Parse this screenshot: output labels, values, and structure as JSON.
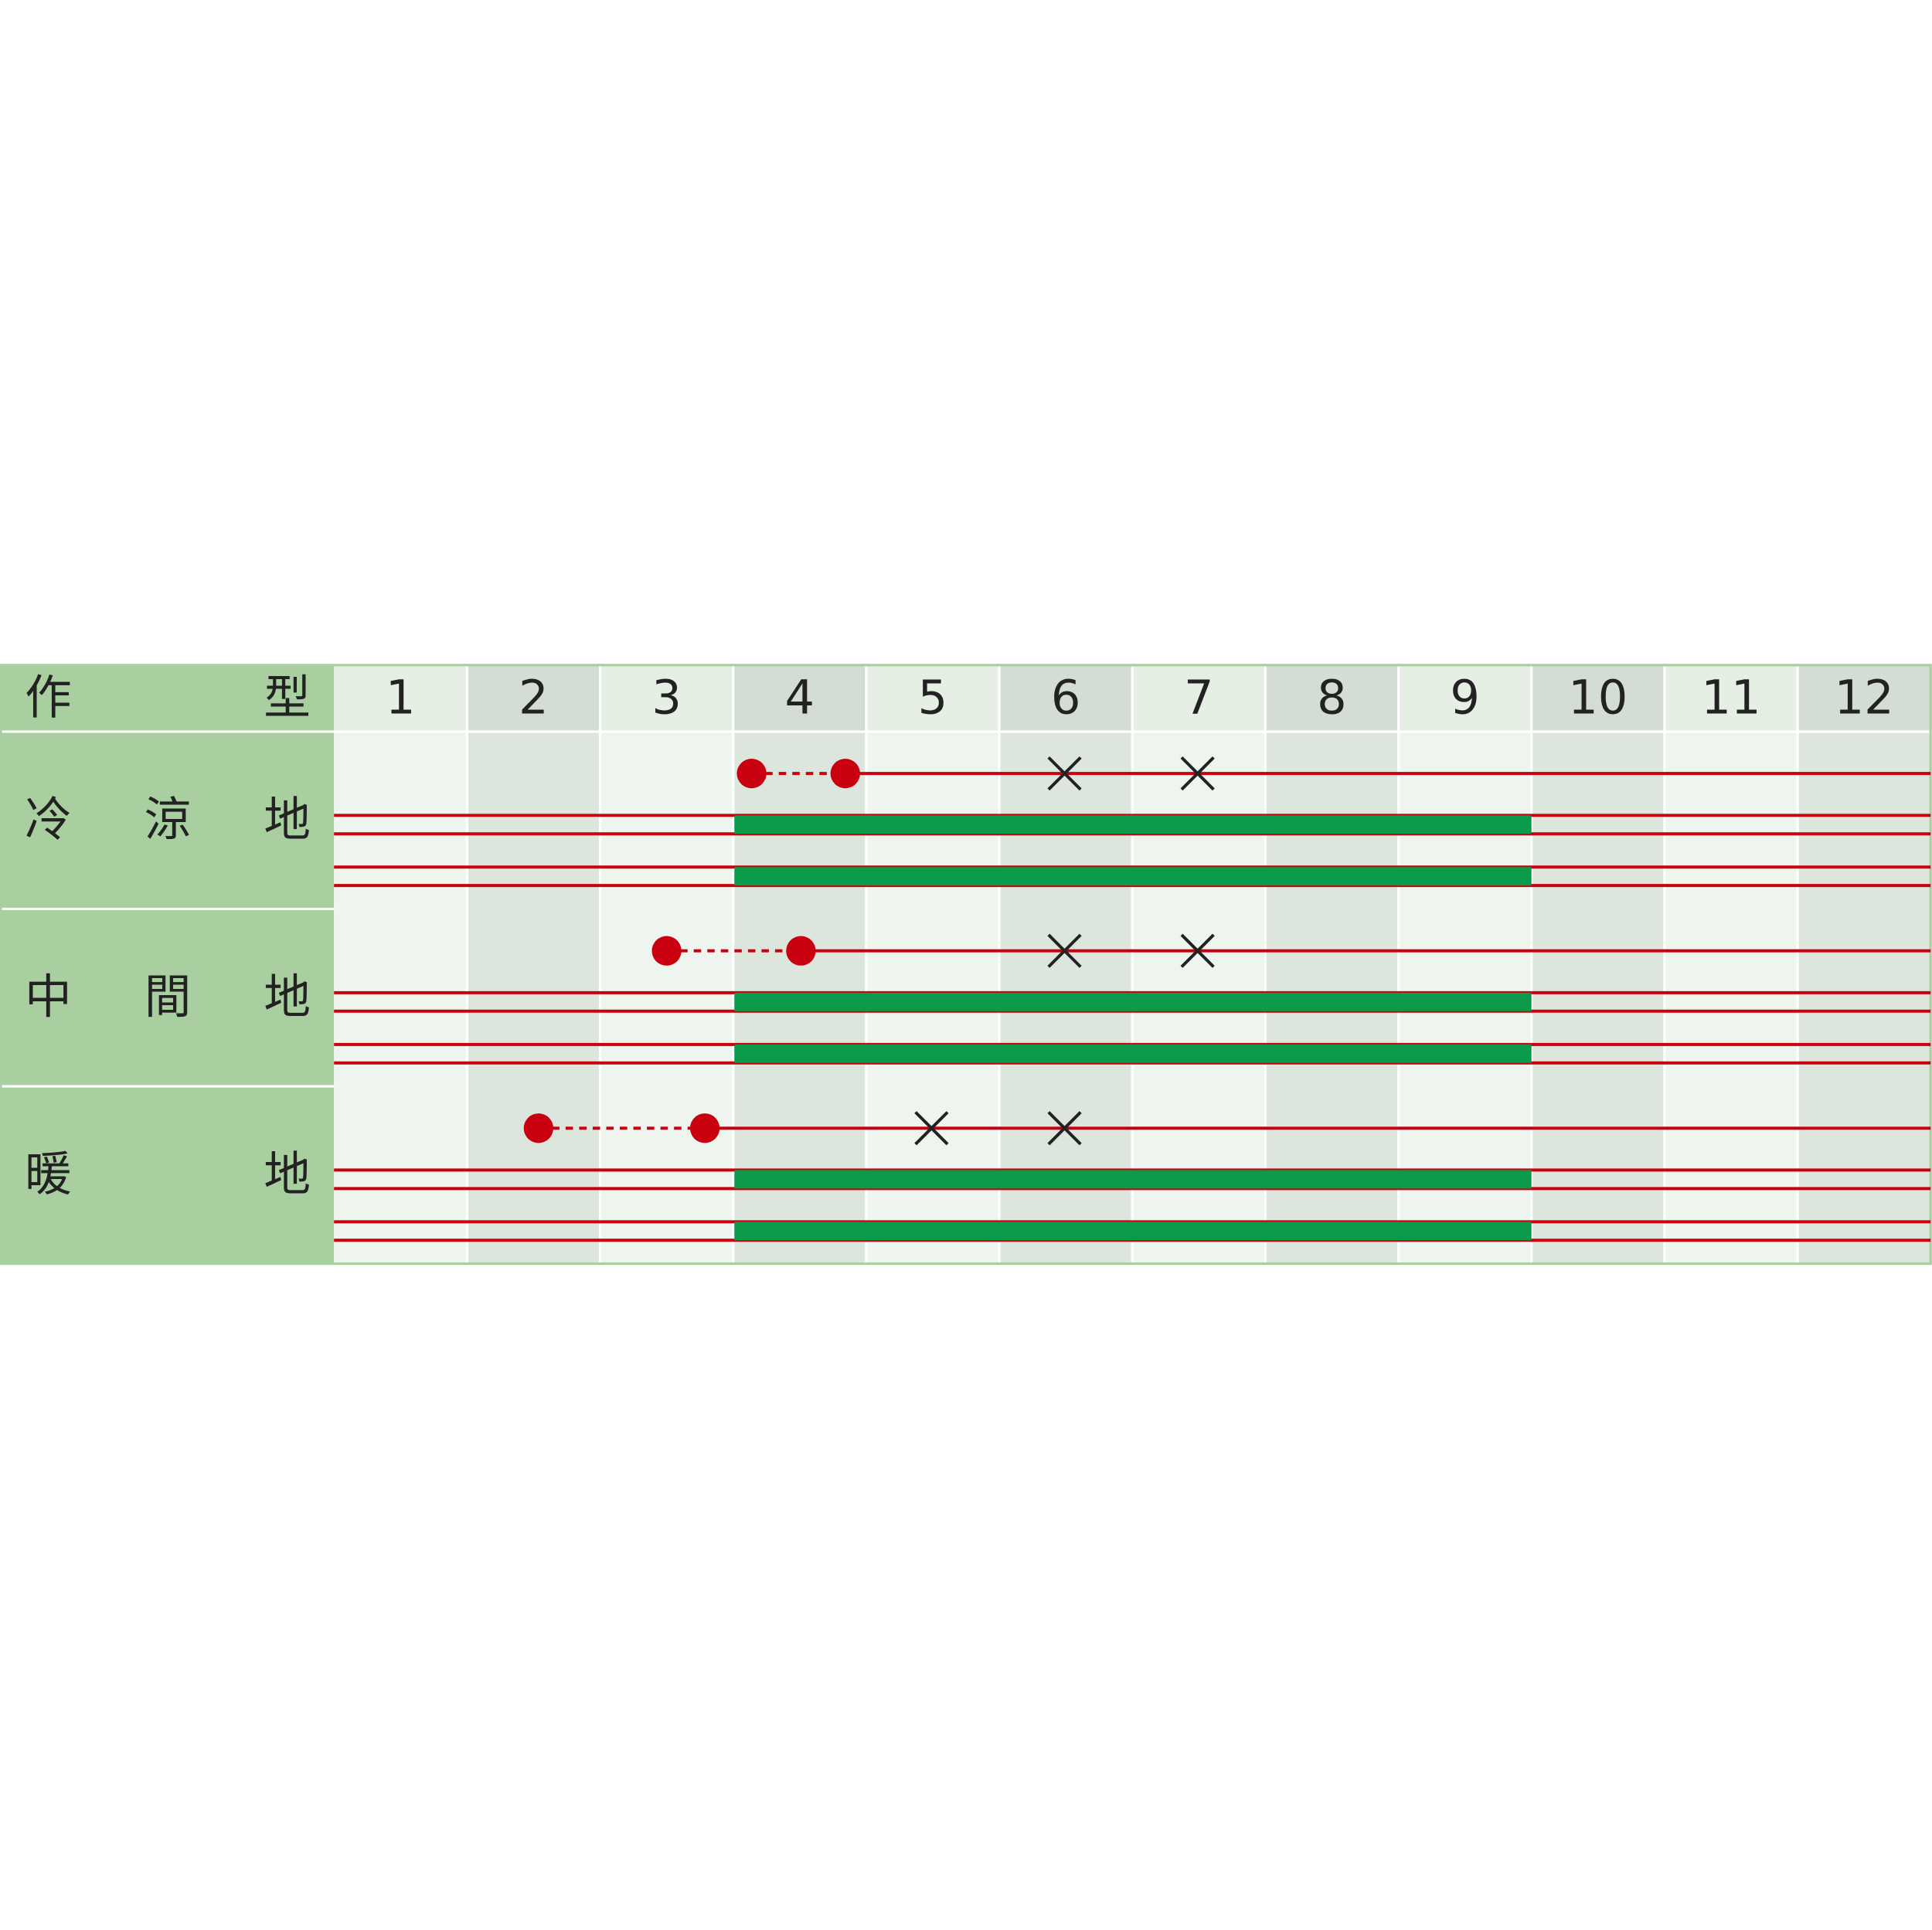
{
  "header": {
    "label": "作型",
    "months": [
      1,
      2,
      3,
      4,
      5,
      6,
      7,
      8,
      9,
      10,
      11,
      12
    ]
  },
  "rows": [
    {
      "label": "冷涼地"
    },
    {
      "label": "中間地"
    },
    {
      "label": "暖地"
    }
  ]
}
